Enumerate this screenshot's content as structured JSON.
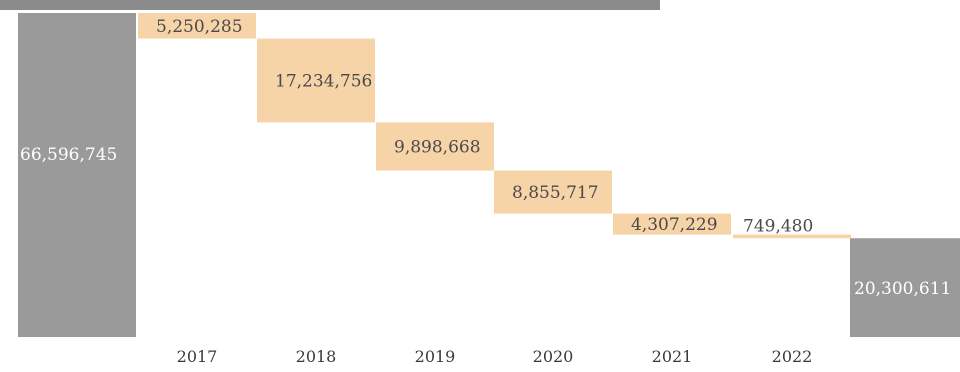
{
  "chart_data": {
    "type": "waterfall",
    "title": "",
    "xlabel": "",
    "ylabel": "",
    "ylim": [
      0,
      66596745
    ],
    "categories": [
      "",
      "2017",
      "2018",
      "2019",
      "2020",
      "2021",
      "2022",
      ""
    ],
    "start_total": 66596745,
    "start_label": "66,596,745",
    "decreases": [
      {
        "year": "2017",
        "value": 5250285,
        "label": "5,250,285"
      },
      {
        "year": "2018",
        "value": 17234756,
        "label": "17,234,756"
      },
      {
        "year": "2019",
        "value": 9898668,
        "label": "9,898,668"
      },
      {
        "year": "2020",
        "value": 8855717,
        "label": "8,855,717"
      },
      {
        "year": "2021",
        "value": 4307229,
        "label": "4,307,229"
      },
      {
        "year": "2022",
        "value": 749480,
        "label": "749,480"
      }
    ],
    "end_total": 20300611,
    "end_label": "20,300,611",
    "grid": false,
    "legend": "none",
    "colors": {
      "total": "#9a9a9b",
      "decrease": "#f7d3a8",
      "banner": "#8b8b8b"
    }
  }
}
